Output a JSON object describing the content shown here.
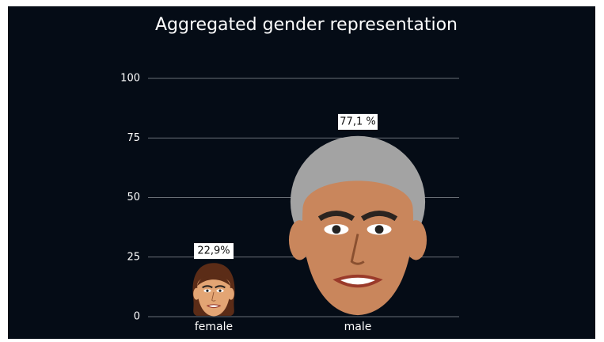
{
  "chart_data": {
    "type": "pictograph",
    "title": "Aggregated gender representation",
    "categories": [
      "female",
      "male"
    ],
    "values": [
      22.9,
      77.1
    ],
    "value_labels": [
      "22,9%",
      "77,1 %"
    ],
    "colors": [
      "#e3a574",
      "#c9865c"
    ],
    "hair_colors": [
      "#5b2c17",
      "#a3a3a3"
    ],
    "ylim": [
      0,
      100
    ],
    "yticks": [
      0,
      25,
      50,
      75,
      100
    ],
    "grid": true
  }
}
